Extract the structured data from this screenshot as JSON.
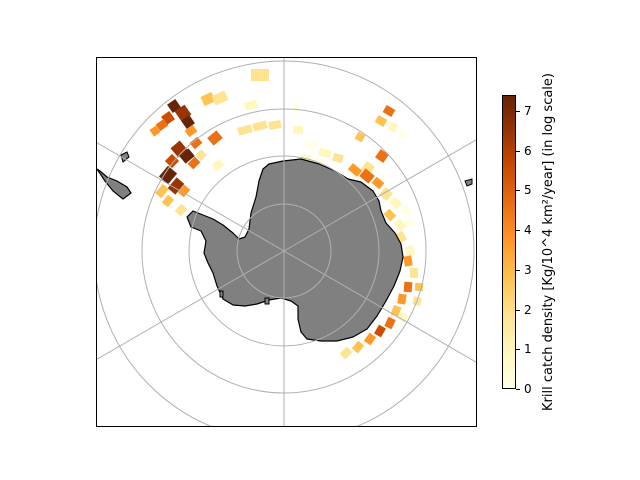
{
  "colorbar": {
    "label": "Krill catch density [Kg/10^4 km²/year] (in log scale)",
    "ticks": [
      0,
      1,
      2,
      3,
      4,
      5,
      6,
      7
    ],
    "vmin": 0,
    "vmax": 7.4,
    "colormap": "YlOrBr",
    "colors": [
      "#ffffe5",
      "#fff7bc",
      "#fee391",
      "#fec44f",
      "#fe9929",
      "#ec7014",
      "#cc4c02",
      "#993404",
      "#662506"
    ]
  },
  "map": {
    "projection": "south-polar-stereographic",
    "land_color": "#808080",
    "graticule_color": "#b0b0b0",
    "gridlines": true
  }
}
